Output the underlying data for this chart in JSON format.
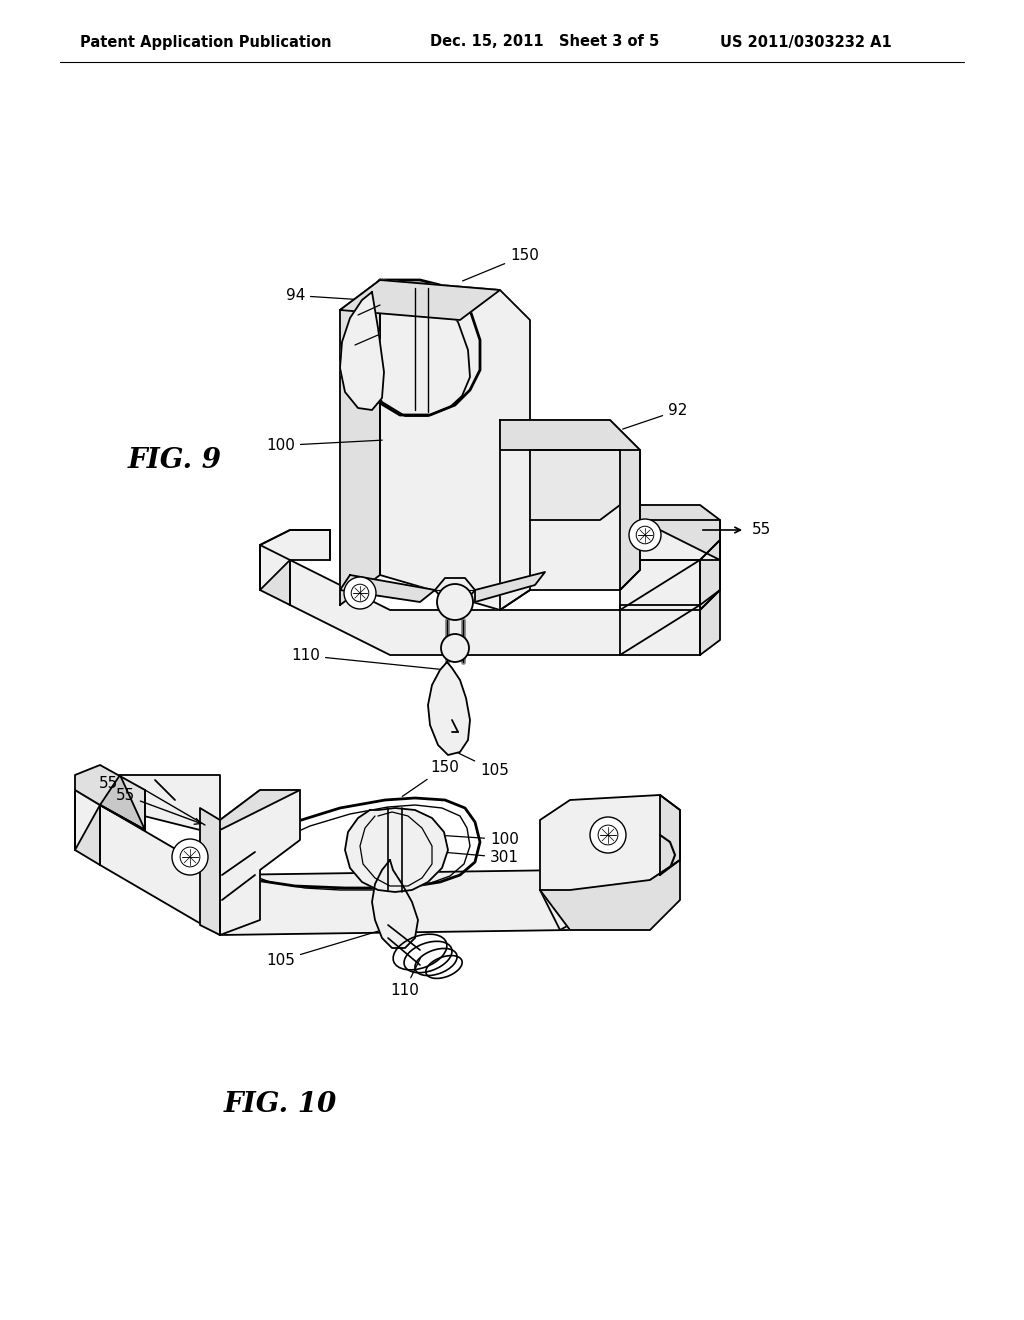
{
  "background_color": "#ffffff",
  "header_left": "Patent Application Publication",
  "header_center": "Dec. 15, 2011   Sheet 3 of 5",
  "header_right": "US 2011/0303232 A1",
  "header_fontsize": 10.5,
  "fig9_label": "FIG. 9",
  "fig10_label": "FIG. 10",
  "label_fontsize": 20,
  "ann_fontsize": 11,
  "line_color": "#000000",
  "shade_light": "#f0f0f0",
  "shade_mid": "#e0e0e0",
  "shade_dark": "#c8c8c8",
  "white": "#ffffff"
}
